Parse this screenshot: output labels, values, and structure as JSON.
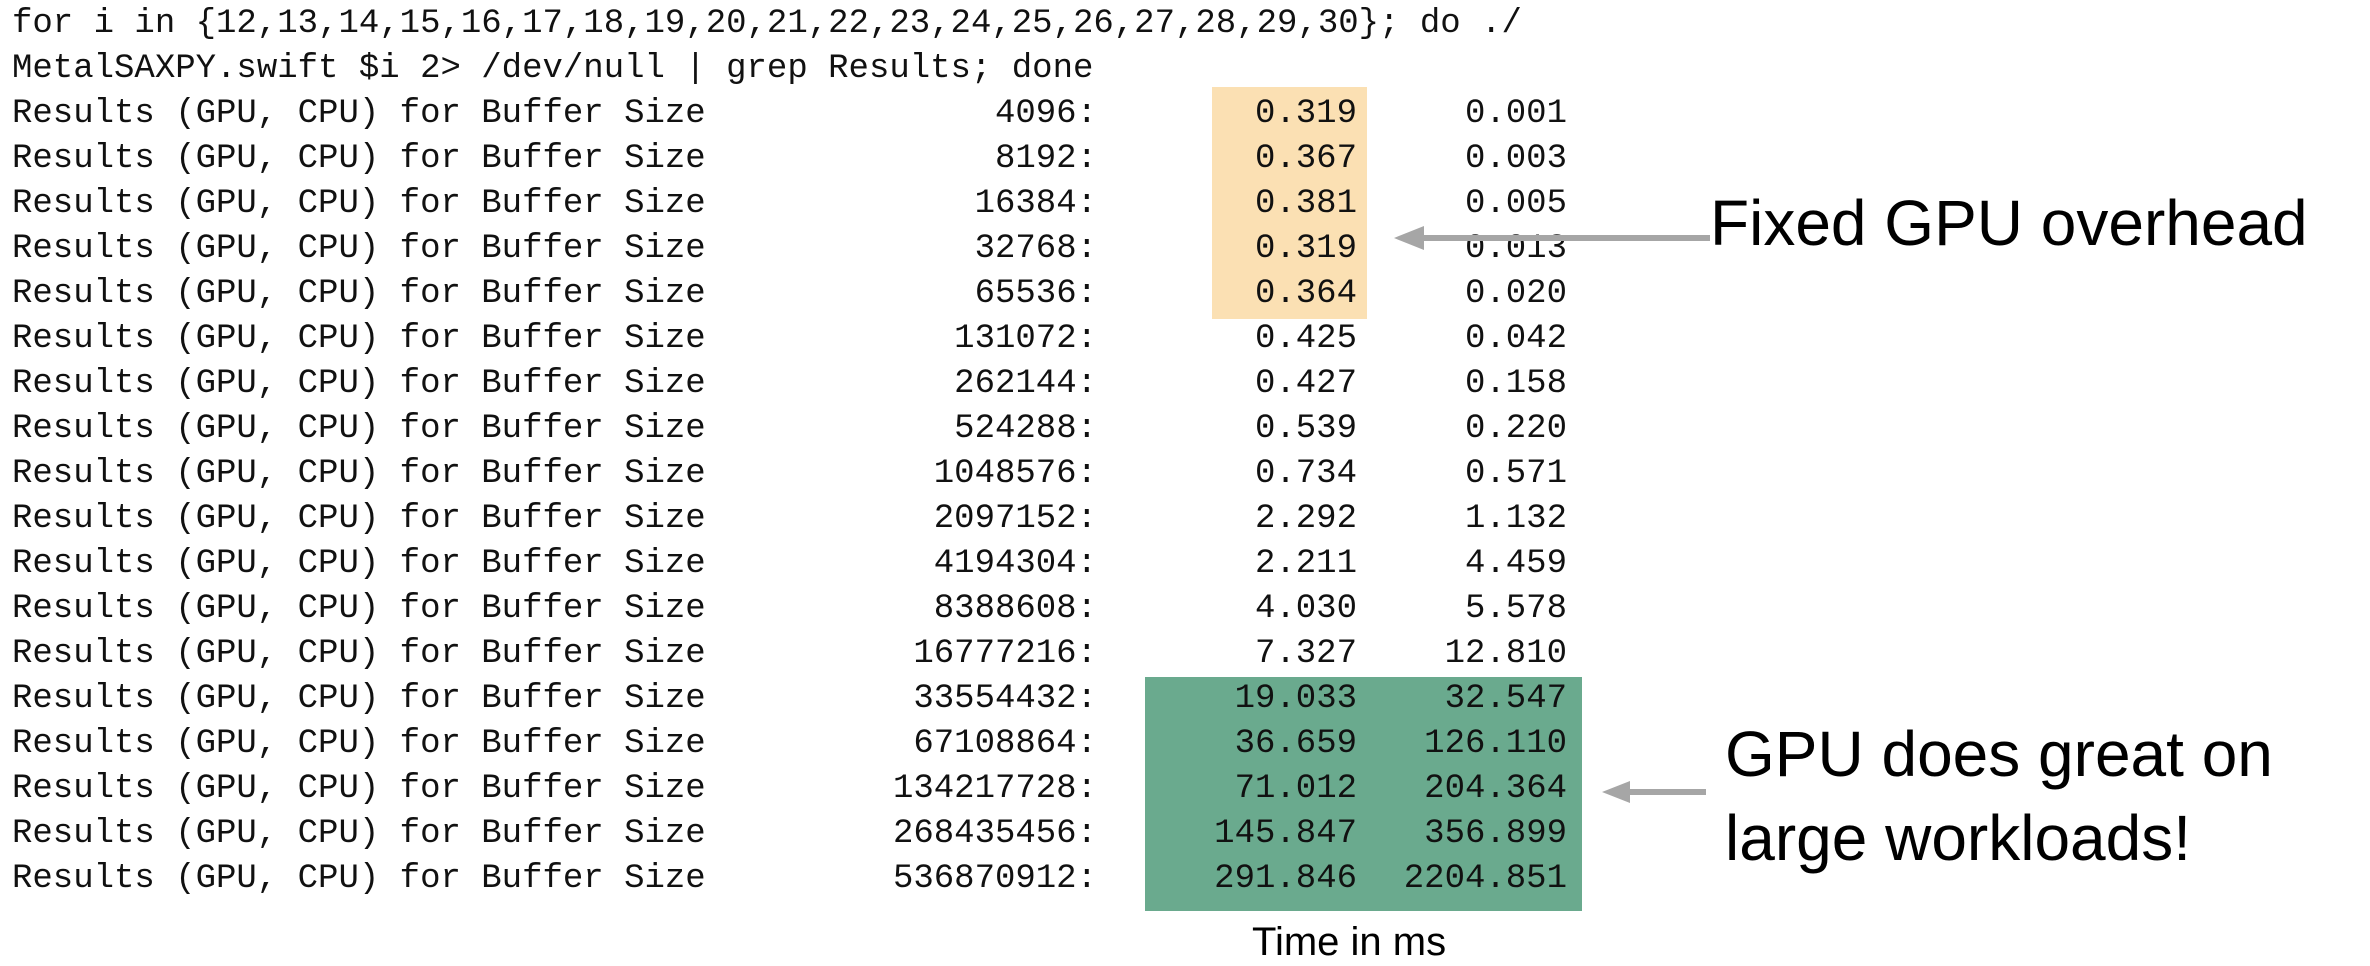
{
  "command": {
    "line1": "for i in {12,13,14,15,16,17,18,19,20,21,22,23,24,25,26,27,28,29,30}; do ./",
    "line2": "MetalSAXPY.swift $i 2> /dev/null | grep Results; done"
  },
  "rows": [
    {
      "prefix": "Results (GPU, CPU) for Buffer Size",
      "size": "4096:",
      "gpu": "0.319",
      "cpu": "0.001"
    },
    {
      "prefix": "Results (GPU, CPU) for Buffer Size",
      "size": "8192:",
      "gpu": "0.367",
      "cpu": "0.003"
    },
    {
      "prefix": "Results (GPU, CPU) for Buffer Size",
      "size": "16384:",
      "gpu": "0.381",
      "cpu": "0.005"
    },
    {
      "prefix": "Results (GPU, CPU) for Buffer Size",
      "size": "32768:",
      "gpu": "0.319",
      "cpu": "0.013"
    },
    {
      "prefix": "Results (GPU, CPU) for Buffer Size",
      "size": "65536:",
      "gpu": "0.364",
      "cpu": "0.020"
    },
    {
      "prefix": "Results (GPU, CPU) for Buffer Size",
      "size": "131072:",
      "gpu": "0.425",
      "cpu": "0.042"
    },
    {
      "prefix": "Results (GPU, CPU) for Buffer Size",
      "size": "262144:",
      "gpu": "0.427",
      "cpu": "0.158"
    },
    {
      "prefix": "Results (GPU, CPU) for Buffer Size",
      "size": "524288:",
      "gpu": "0.539",
      "cpu": "0.220"
    },
    {
      "prefix": "Results (GPU, CPU) for Buffer Size",
      "size": "1048576:",
      "gpu": "0.734",
      "cpu": "0.571"
    },
    {
      "prefix": "Results (GPU, CPU) for Buffer Size",
      "size": "2097152:",
      "gpu": "2.292",
      "cpu": "1.132"
    },
    {
      "prefix": "Results (GPU, CPU) for Buffer Size",
      "size": "4194304:",
      "gpu": "2.211",
      "cpu": "4.459"
    },
    {
      "prefix": "Results (GPU, CPU) for Buffer Size",
      "size": "8388608:",
      "gpu": "4.030",
      "cpu": "5.578"
    },
    {
      "prefix": "Results (GPU, CPU) for Buffer Size",
      "size": "16777216:",
      "gpu": "7.327",
      "cpu": "12.810"
    },
    {
      "prefix": "Results (GPU, CPU) for Buffer Size",
      "size": "33554432:",
      "gpu": "19.033",
      "cpu": "32.547"
    },
    {
      "prefix": "Results (GPU, CPU) for Buffer Size",
      "size": "67108864:",
      "gpu": "36.659",
      "cpu": "126.110"
    },
    {
      "prefix": "Results (GPU, CPU) for Buffer Size",
      "size": "134217728:",
      "gpu": "71.012",
      "cpu": "204.364"
    },
    {
      "prefix": "Results (GPU, CPU) for Buffer Size",
      "size": "268435456:",
      "gpu": "145.847",
      "cpu": "356.899"
    },
    {
      "prefix": "Results (GPU, CPU) for Buffer Size",
      "size": "536870912:",
      "gpu": "291.846",
      "cpu": "2204.851"
    }
  ],
  "annotations": {
    "overhead": "Fixed GPU overhead",
    "large_line1": "GPU does great on",
    "large_line2": "large workloads!",
    "axis_label": "Time in ms"
  },
  "colors": {
    "overhead_highlight": "#fbe0b3",
    "large_highlight": "#6aaa8e",
    "arrow": "#a6a6a6",
    "text": "#111111"
  }
}
